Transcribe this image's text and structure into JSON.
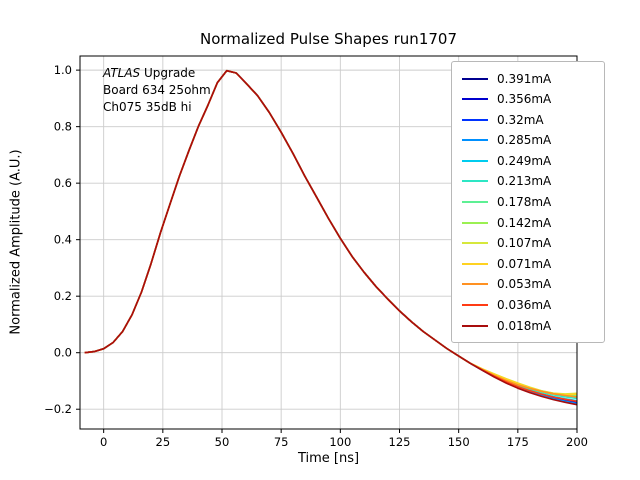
{
  "annotation": {
    "atlas": "ATLAS",
    "upgrade": " Upgrade",
    "line2": "Board 634 25ohm",
    "line3": "Ch075 35dB hi"
  },
  "chart_data": {
    "type": "line",
    "title": "Normalized Pulse Shapes run1707",
    "xlabel": "Time [ns]",
    "ylabel": "Normalized Amplitude (A.U.)",
    "xlim": [
      -10,
      200
    ],
    "ylim": [
      -0.27,
      1.05
    ],
    "grid": true,
    "legend_position": "upper right outside",
    "xticks": [
      {
        "v": 0,
        "label": "0"
      },
      {
        "v": 25,
        "label": "25"
      },
      {
        "v": 50,
        "label": "50"
      },
      {
        "v": 75,
        "label": "75"
      },
      {
        "v": 100,
        "label": "100"
      },
      {
        "v": 125,
        "label": "125"
      },
      {
        "v": 150,
        "label": "150"
      },
      {
        "v": 175,
        "label": "175"
      },
      {
        "v": 200,
        "label": "200"
      }
    ],
    "yticks": [
      {
        "v": -0.2,
        "label": "−0.2"
      },
      {
        "v": 0.0,
        "label": "0.0"
      },
      {
        "v": 0.2,
        "label": "0.2"
      },
      {
        "v": 0.4,
        "label": "0.4"
      },
      {
        "v": 0.6,
        "label": "0.6"
      },
      {
        "v": 0.8,
        "label": "0.8"
      },
      {
        "v": 1.0,
        "label": "1.0"
      }
    ],
    "x": [
      -8,
      -4,
      0,
      4,
      8,
      12,
      16,
      20,
      24,
      28,
      32,
      36,
      40,
      44,
      48,
      52,
      56,
      60,
      65,
      70,
      75,
      80,
      85,
      90,
      95,
      100,
      105,
      110,
      115,
      120,
      125,
      130,
      135,
      140,
      145,
      150,
      155,
      160,
      165,
      170,
      175,
      180,
      185,
      190,
      195,
      200
    ],
    "base_pulse": [
      0.0,
      0.004,
      0.014,
      0.036,
      0.075,
      0.135,
      0.215,
      0.315,
      0.425,
      0.525,
      0.625,
      0.715,
      0.8,
      0.875,
      0.955,
      0.998,
      0.99,
      0.955,
      0.91,
      0.85,
      0.78,
      0.705,
      0.625,
      0.55,
      0.475,
      0.405,
      0.34,
      0.285,
      0.235,
      0.19,
      0.148,
      0.11,
      0.075,
      0.045,
      0.015,
      -0.012,
      -0.038,
      -0.062,
      -0.085,
      -0.106,
      -0.124,
      -0.139,
      -0.152,
      -0.163,
      -0.172,
      -0.18
    ],
    "series": [
      {
        "name": "0.391mA",
        "color": "#00008f",
        "tail_end": -0.175
      },
      {
        "name": "0.356mA",
        "color": "#0000cd",
        "tail_end": -0.177
      },
      {
        "name": "0.32mA",
        "color": "#0033ff",
        "tail_end": -0.179
      },
      {
        "name": "0.285mA",
        "color": "#0090ff",
        "tail_end": -0.18
      },
      {
        "name": "0.249mA",
        "color": "#00ccee",
        "tail_end": -0.17
      },
      {
        "name": "0.213mA",
        "color": "#2de6c4",
        "tail_end": -0.162
      },
      {
        "name": "0.178mA",
        "color": "#5df094",
        "tail_end": -0.155
      },
      {
        "name": "0.142mA",
        "color": "#9bf052",
        "tail_end": -0.15,
        "wiggle": 0.008
      },
      {
        "name": "0.107mA",
        "color": "#d6e83c",
        "tail_end": -0.145,
        "wiggle": 0.01
      },
      {
        "name": "0.071mA",
        "color": "#ffd221",
        "tail_end": -0.148,
        "wiggle": 0.01
      },
      {
        "name": "0.053mA",
        "color": "#ff9122",
        "tail_end": -0.157
      },
      {
        "name": "0.036mA",
        "color": "#ff3b14",
        "tail_end": -0.172
      },
      {
        "name": "0.018mA",
        "color": "#a80d0d",
        "tail_end": -0.184
      }
    ]
  }
}
